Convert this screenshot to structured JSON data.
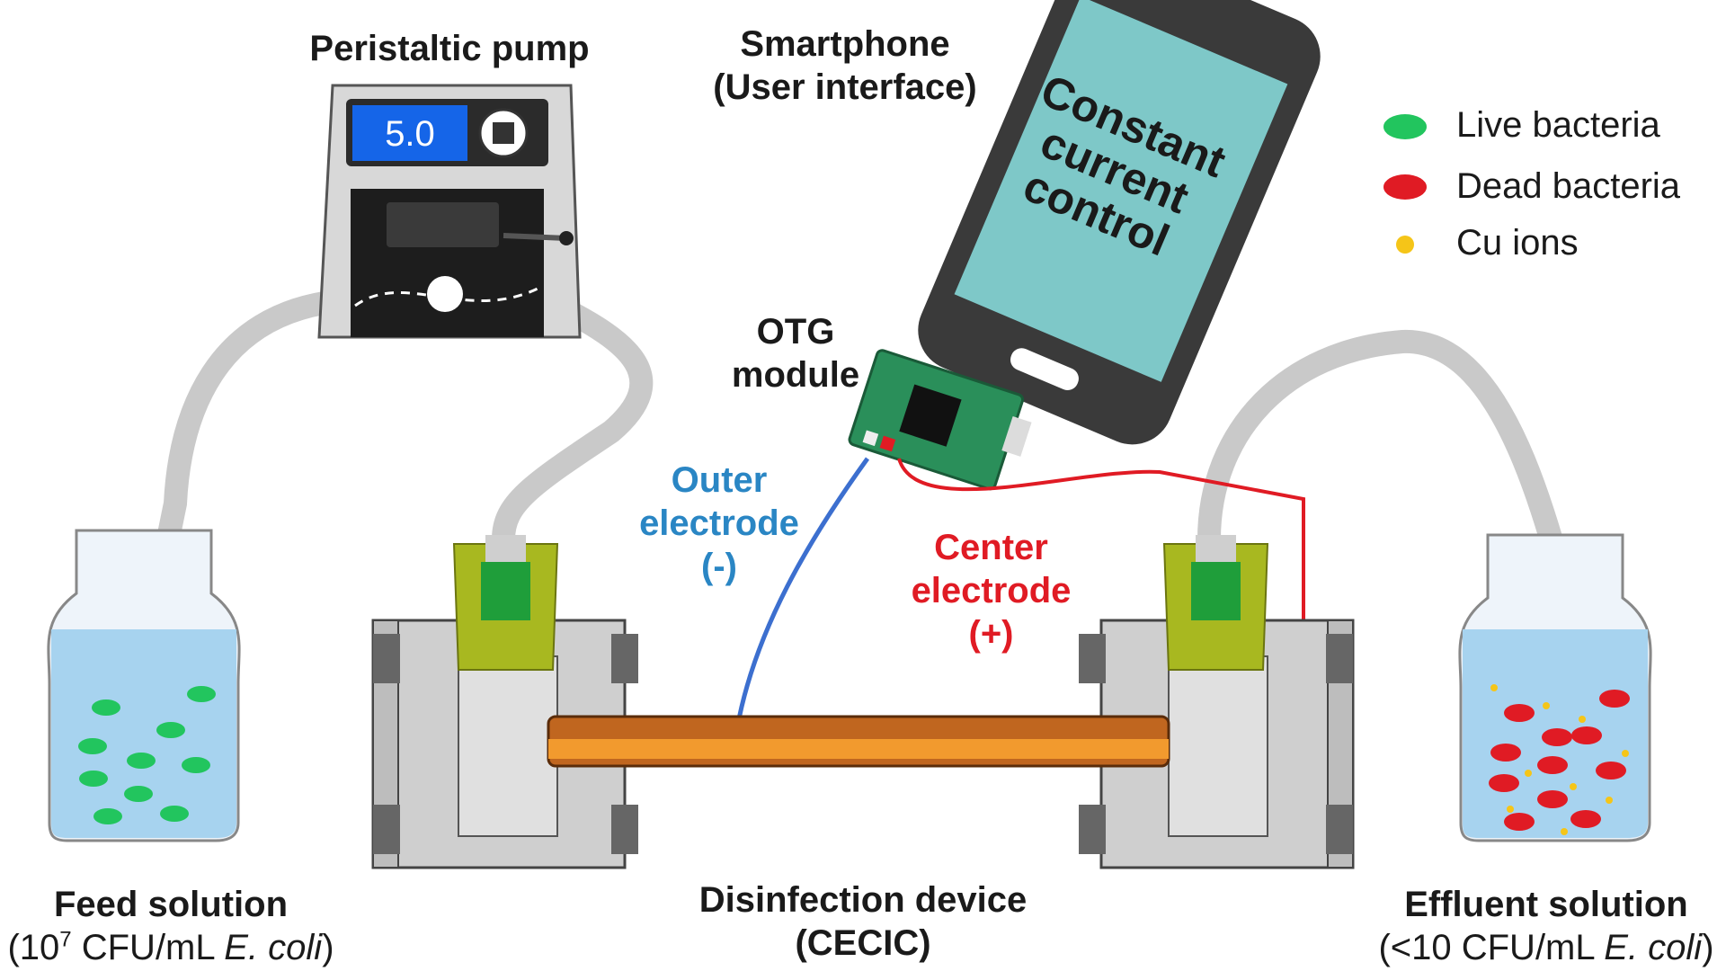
{
  "pump": {
    "title": "Peristaltic pump",
    "display_value": "5.0"
  },
  "smartphone": {
    "title_line1": "Smartphone",
    "title_line2": "(User interface)",
    "screen_line1": "Constant",
    "screen_line2": "current",
    "screen_line3": "control"
  },
  "otg": {
    "line1": "OTG",
    "line2": "module"
  },
  "outer_electrode": {
    "line1": "Outer",
    "line2": "electrode",
    "line3": "(-)"
  },
  "center_electrode": {
    "line1": "Center",
    "line2": "electrode",
    "line3": "(+)"
  },
  "legend": [
    {
      "label": "Live bacteria",
      "color": "#22c55e"
    },
    {
      "label": "Dead bacteria",
      "color": "#e01b24"
    },
    {
      "label": "Cu ions",
      "color": "#f5c518"
    }
  ],
  "feed": {
    "title": "Feed solution",
    "conc_prefix": "(10",
    "conc_exp": "7",
    "conc_mid": " CFU/mL ",
    "organism": "E. coli",
    "conc_suffix": ")"
  },
  "device": {
    "title": "Disinfection device",
    "subtitle": "(CECIC)"
  },
  "effluent": {
    "title": "Effluent solution",
    "conc_prefix": "(<10 CFU/mL ",
    "organism": "E. coli",
    "conc_suffix": ")"
  }
}
